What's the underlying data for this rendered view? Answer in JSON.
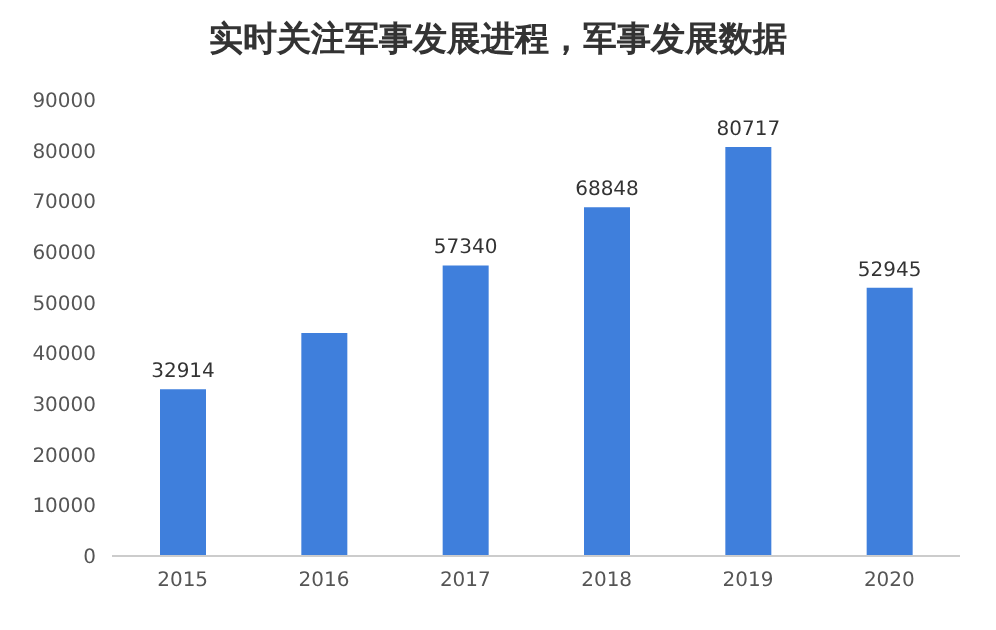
{
  "chart_data": {
    "type": "bar",
    "title": "实时关注军事发展进程，军事发展数据",
    "categories": [
      "2015",
      "2016",
      "2017",
      "2018",
      "2019",
      "2020"
    ],
    "values": [
      32914,
      44000,
      57340,
      68848,
      80717,
      52945
    ],
    "value_labels": [
      "32914",
      null,
      "57340",
      "68848",
      "80717",
      "52945"
    ],
    "color": "#3f7fdc",
    "ylim": [
      0,
      90000
    ],
    "yticks": [
      0,
      10000,
      20000,
      30000,
      40000,
      50000,
      60000,
      70000,
      80000,
      90000
    ],
    "grid": false,
    "legend": false
  }
}
